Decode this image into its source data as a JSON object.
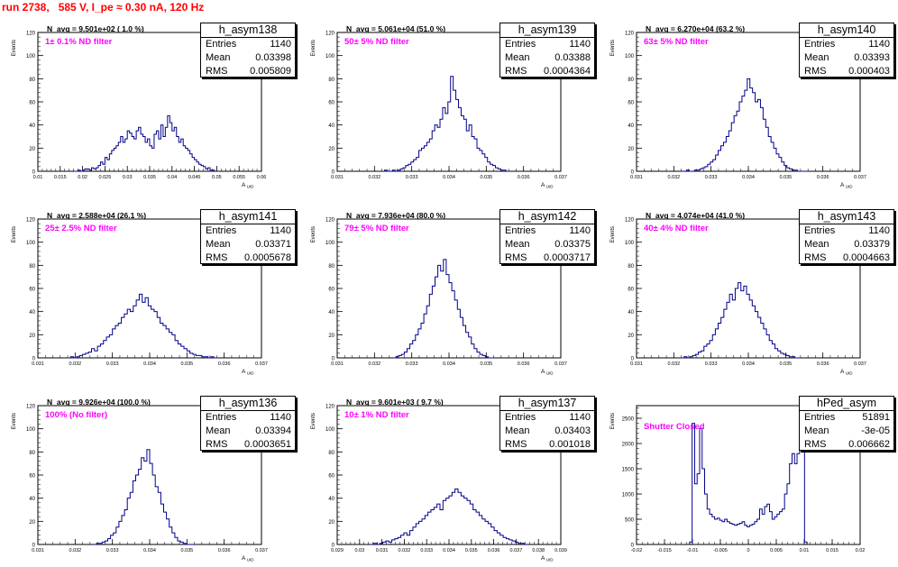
{
  "run_title": "run 2738,   585 V, I_pe ≈ 0.30 nA, 120 Hz",
  "stat_labels": {
    "entries": "Entries",
    "mean": "Mean",
    "rms": "RMS"
  },
  "colors": {
    "histogram": "#00008b",
    "annotation": "#ff00ff",
    "run_title": "#ff0000"
  },
  "chart_data": [
    {
      "type": "histogram",
      "name": "h_asym138",
      "entries": "1140",
      "mean": "0.03398",
      "rms": "0.005809",
      "n_avg": "N_avg = 9.501e+02 ( 1.0 %)",
      "filter": "1± 0.1% ND filter",
      "xlabel": "A_uid",
      "ylabel": "Events",
      "xlim": [
        0.01,
        0.06
      ],
      "ylim": [
        0,
        120
      ],
      "x_ticks": [
        "0.01",
        "0.015",
        "0.02",
        "0.025",
        "0.03",
        "0.035",
        "0.04",
        "0.045",
        "0.05",
        "0.055",
        "0.06"
      ],
      "y_ticks": [
        "0",
        "20",
        "40",
        "60",
        "80",
        "100",
        "120"
      ],
      "bin_range": [
        0.018,
        0.05
      ],
      "values": [
        0,
        0,
        1,
        0,
        1,
        2,
        2,
        1,
        3,
        2,
        3,
        5,
        8,
        6,
        12,
        10,
        15,
        18,
        20,
        22,
        25,
        30,
        25,
        28,
        35,
        33,
        30,
        28,
        35,
        38,
        32,
        30,
        25,
        28,
        22,
        20,
        32,
        35,
        28,
        40,
        30,
        38,
        48,
        42,
        35,
        38,
        30,
        25,
        28,
        22,
        20,
        18,
        15,
        12,
        10,
        8,
        6,
        5,
        4,
        2,
        3,
        1,
        1,
        0
      ]
    },
    {
      "type": "histogram",
      "name": "h_asym139",
      "entries": "1140",
      "mean": "0.03388",
      "rms": "0.0004364",
      "n_avg": "N_avg = 5.061e+04 (51.0 %)",
      "filter": "50± 5% ND filter",
      "xlabel": "A_uid",
      "ylabel": "Events",
      "xlim": [
        0.031,
        0.037
      ],
      "ylim": [
        0,
        120
      ],
      "x_ticks": [
        "0.031",
        "0.032",
        "0.033",
        "0.034",
        "0.035",
        "0.036",
        "0.037"
      ],
      "y_ticks": [
        "0",
        "20",
        "40",
        "60",
        "80",
        "100",
        "120"
      ],
      "bin_range": [
        0.0322,
        0.0356
      ],
      "values": [
        0,
        1,
        0,
        0,
        1,
        0,
        1,
        2,
        3,
        5,
        6,
        8,
        10,
        12,
        18,
        20,
        22,
        25,
        28,
        35,
        40,
        38,
        45,
        55,
        50,
        60,
        82,
        70,
        62,
        55,
        48,
        45,
        35,
        40,
        30,
        28,
        20,
        18,
        15,
        12,
        8,
        6,
        5,
        3,
        2,
        1,
        1,
        0
      ]
    },
    {
      "type": "histogram",
      "name": "h_asym140",
      "entries": "1140",
      "mean": "0.03393",
      "rms": "0.000403",
      "n_avg": "N_avg = 6.270e+04 (63.2 %)",
      "filter": "63± 5% ND filter",
      "xlabel": "A_uid",
      "ylabel": "Events",
      "xlim": [
        0.031,
        0.037
      ],
      "ylim": [
        0,
        120
      ],
      "x_ticks": [
        "0.031",
        "0.032",
        "0.033",
        "0.034",
        "0.035",
        "0.036",
        "0.037"
      ],
      "y_ticks": [
        "0",
        "20",
        "40",
        "60",
        "80",
        "100",
        "120"
      ],
      "bin_range": [
        0.0322,
        0.0356
      ],
      "values": [
        0,
        0,
        1,
        0,
        0,
        1,
        1,
        2,
        3,
        4,
        6,
        8,
        10,
        14,
        18,
        22,
        25,
        30,
        35,
        42,
        48,
        52,
        60,
        65,
        70,
        80,
        72,
        68,
        60,
        62,
        55,
        45,
        38,
        30,
        25,
        20,
        15,
        12,
        8,
        5,
        3,
        2,
        1,
        1,
        0,
        0,
        0,
        0
      ]
    },
    {
      "type": "histogram",
      "name": "h_asym141",
      "entries": "1140",
      "mean": "0.03371",
      "rms": "0.0005678",
      "n_avg": "N_avg = 2.588e+04 (26.1 %)",
      "filter": "25± 2.5% ND filter",
      "xlabel": "A_uid",
      "ylabel": "Events",
      "xlim": [
        0.031,
        0.037
      ],
      "ylim": [
        0,
        120
      ],
      "x_ticks": [
        "0.031",
        "0.032",
        "0.033",
        "0.034",
        "0.035",
        "0.036",
        "0.037"
      ],
      "y_ticks": [
        "0",
        "20",
        "40",
        "60",
        "80",
        "100",
        "120"
      ],
      "bin_range": [
        0.0318,
        0.0358
      ],
      "values": [
        0,
        1,
        0,
        1,
        2,
        3,
        4,
        5,
        8,
        6,
        10,
        12,
        15,
        18,
        20,
        25,
        28,
        30,
        35,
        38,
        42,
        40,
        45,
        50,
        55,
        48,
        52,
        45,
        42,
        40,
        35,
        30,
        28,
        25,
        22,
        20,
        15,
        12,
        10,
        8,
        6,
        4,
        3,
        2,
        2,
        1,
        1,
        0,
        1,
        0
      ]
    },
    {
      "type": "histogram",
      "name": "h_asym142",
      "entries": "1140",
      "mean": "0.03375",
      "rms": "0.0003717",
      "n_avg": "N_avg = 7.936e+04 (80.0 %)",
      "filter": "79± 5% ND filter",
      "xlabel": "A_uid",
      "ylabel": "Events",
      "xlim": [
        0.031,
        0.037
      ],
      "ylim": [
        0,
        120
      ],
      "x_ticks": [
        "0.031",
        "0.032",
        "0.033",
        "0.034",
        "0.035",
        "0.036",
        "0.037"
      ],
      "y_ticks": [
        "0",
        "20",
        "40",
        "60",
        "80",
        "100",
        "120"
      ],
      "bin_range": [
        0.0325,
        0.0352
      ],
      "values": [
        0,
        1,
        2,
        3,
        5,
        8,
        12,
        15,
        20,
        25,
        30,
        38,
        45,
        55,
        62,
        70,
        80,
        75,
        85,
        72,
        65,
        58,
        50,
        42,
        35,
        28,
        22,
        18,
        12,
        8,
        5,
        3,
        2,
        1,
        0,
        0
      ]
    },
    {
      "type": "histogram",
      "name": "h_asym143",
      "entries": "1140",
      "mean": "0.03379",
      "rms": "0.0004663",
      "n_avg": "N_avg = 4.074e+04 (41.0 %)",
      "filter": "40± 4% ND filter",
      "xlabel": "A_uid",
      "ylabel": "Events",
      "xlim": [
        0.031,
        0.037
      ],
      "ylim": [
        0,
        120
      ],
      "x_ticks": [
        "0.031",
        "0.032",
        "0.033",
        "0.034",
        "0.035",
        "0.036",
        "0.037"
      ],
      "y_ticks": [
        "0",
        "20",
        "40",
        "60",
        "80",
        "100",
        "120"
      ],
      "bin_range": [
        0.0322,
        0.0354
      ],
      "values": [
        0,
        1,
        0,
        1,
        2,
        3,
        5,
        6,
        10,
        12,
        15,
        20,
        25,
        30,
        35,
        42,
        48,
        55,
        50,
        60,
        65,
        58,
        62,
        55,
        50,
        45,
        40,
        35,
        30,
        25,
        20,
        15,
        12,
        8,
        6,
        4,
        3,
        2,
        1,
        1,
        0,
        0
      ]
    },
    {
      "type": "histogram",
      "name": "h_asym136",
      "entries": "1140",
      "mean": "0.03394",
      "rms": "0.0003651",
      "n_avg": "N_avg = 9.926e+04 (100.0 %)",
      "filter": "100% (No filter)",
      "xlabel": "A_uid",
      "ylabel": "Events",
      "xlim": [
        0.031,
        0.037
      ],
      "ylim": [
        0,
        120
      ],
      "x_ticks": [
        "0.031",
        "0.032",
        "0.033",
        "0.034",
        "0.035",
        "0.036",
        "0.037"
      ],
      "y_ticks": [
        "0",
        "20",
        "40",
        "60",
        "80",
        "100",
        "120"
      ],
      "bin_range": [
        0.0325,
        0.0352
      ],
      "values": [
        0,
        1,
        1,
        2,
        3,
        5,
        8,
        10,
        15,
        20,
        25,
        30,
        40,
        45,
        55,
        60,
        65,
        75,
        72,
        82,
        70,
        60,
        50,
        45,
        35,
        28,
        22,
        15,
        10,
        6,
        3,
        2,
        1,
        0,
        0,
        0
      ]
    },
    {
      "type": "histogram",
      "name": "h_asym137",
      "entries": "1140",
      "mean": "0.03403",
      "rms": "0.001018",
      "n_avg": "N_avg = 9.601e+03 ( 9.7 %)",
      "filter": "10± 1% ND filter",
      "xlabel": "A_uid",
      "ylabel": "Events",
      "xlim": [
        0.029,
        0.039
      ],
      "ylim": [
        0,
        120
      ],
      "x_ticks": [
        "0.029",
        "0.03",
        "0.031",
        "0.032",
        "0.033",
        "0.034",
        "0.035",
        "0.036",
        "0.037",
        "0.038",
        "0.039"
      ],
      "y_ticks": [
        "0",
        "20",
        "40",
        "60",
        "80",
        "100",
        "120"
      ],
      "bin_range": [
        0.0305,
        0.0375
      ],
      "values": [
        0,
        1,
        0,
        1,
        2,
        3,
        2,
        4,
        5,
        6,
        8,
        10,
        8,
        12,
        15,
        18,
        20,
        22,
        25,
        28,
        30,
        32,
        35,
        30,
        38,
        40,
        42,
        45,
        48,
        45,
        42,
        40,
        38,
        35,
        30,
        28,
        25,
        22,
        20,
        18,
        15,
        12,
        10,
        8,
        6,
        5,
        4,
        3,
        2,
        1,
        1,
        0
      ]
    },
    {
      "type": "histogram",
      "name": "hPed_asym",
      "entries": "51891",
      "mean": "-3e-05",
      "rms": "0.006662",
      "n_avg": "",
      "filter": "Shutter Closed",
      "xlabel": "",
      "ylabel": "Events",
      "xlim": [
        -0.02,
        0.02
      ],
      "ylim": [
        0,
        2750
      ],
      "x_ticks": [
        "-0.02",
        "-0.015",
        "-0.01",
        "-0.005",
        "0",
        "0.005",
        "0.01",
        "0.015",
        "0.02"
      ],
      "y_ticks": [
        "0",
        "500",
        "1000",
        "1500",
        "2000",
        "2500"
      ],
      "bin_range": [
        -0.0105,
        0.0105
      ],
      "values": [
        50,
        2400,
        1200,
        1400,
        2300,
        1500,
        1000,
        700,
        600,
        550,
        500,
        520,
        480,
        450,
        500,
        450,
        420,
        400,
        380,
        400,
        420,
        450,
        380,
        350,
        380,
        400,
        450,
        500,
        700,
        600,
        750,
        800,
        650,
        500,
        550,
        600,
        650,
        700,
        1000,
        1200,
        1600,
        1800,
        1600,
        1800,
        2500,
        2700,
        50
      ]
    }
  ]
}
